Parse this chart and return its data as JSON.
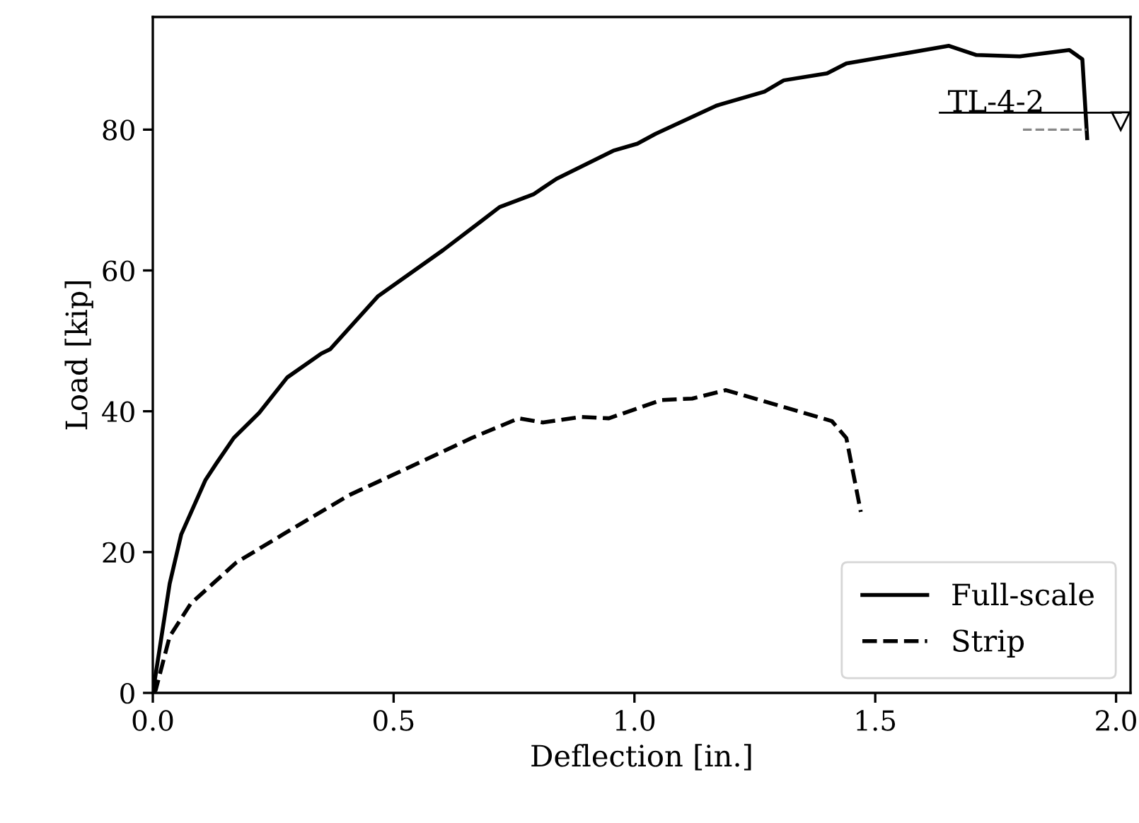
{
  "chart_data": {
    "type": "line",
    "xlabel": "Deflection [in.]",
    "ylabel": "Load [kip]",
    "xlim": [
      0,
      2.03
    ],
    "ylim": [
      0,
      96
    ],
    "xticks": [
      {
        "value": 0,
        "label": "0.0"
      },
      0.5,
      {
        "value": 1,
        "label": "1.0"
      },
      1.5,
      {
        "value": 2,
        "label": "2.0"
      }
    ],
    "yticks": [
      0,
      20,
      40,
      60,
      80
    ],
    "grid": false,
    "legend": "bottom right",
    "marker": "none",
    "ref_lines": [
      {
        "axis": "y",
        "value": 80,
        "label": "TL-4-2",
        "color": "#888888",
        "line_style": "dashed"
      }
    ],
    "series": [
      {
        "name": "Full-scale",
        "color": "#000000",
        "line_style": "solid",
        "x": [
          0,
          0.035,
          0.059,
          0.109,
          0.132,
          0.168,
          0.221,
          0.279,
          0.35,
          0.368,
          0.467,
          0.603,
          0.682,
          0.72,
          0.79,
          0.838,
          0.956,
          1.006,
          1.044,
          1.17,
          1.27,
          1.31,
          1.4,
          1.44,
          1.653,
          1.71,
          1.8,
          1.903,
          1.93,
          1.94
        ],
        "values": [
          0,
          15.5,
          22.5,
          30.2,
          32.6,
          36.2,
          39.8,
          44.8,
          48.2,
          48.8,
          56.3,
          62.9,
          67,
          69,
          70.8,
          73,
          77,
          78,
          79.4,
          83.4,
          85.4,
          87,
          88,
          89.4,
          91.9,
          90.6,
          90.4,
          91.3,
          90,
          78.8
        ]
      },
      {
        "name": "Strip",
        "color": "#000000",
        "line_style": "dashed",
        "x": [
          0,
          0.006,
          0.035,
          0.079,
          0.173,
          0.27,
          0.408,
          0.506,
          0.662,
          0.76,
          0.81,
          0.888,
          0.947,
          1.056,
          1.12,
          1.19,
          1.3,
          1.41,
          1.44,
          1.47
        ],
        "values": [
          0,
          0.4,
          8,
          12.7,
          18.5,
          22.5,
          28.1,
          31.2,
          36.2,
          39,
          38.4,
          39.2,
          39,
          41.6,
          41.8,
          43,
          40.8,
          38.6,
          36.2,
          25.7
        ]
      }
    ]
  }
}
